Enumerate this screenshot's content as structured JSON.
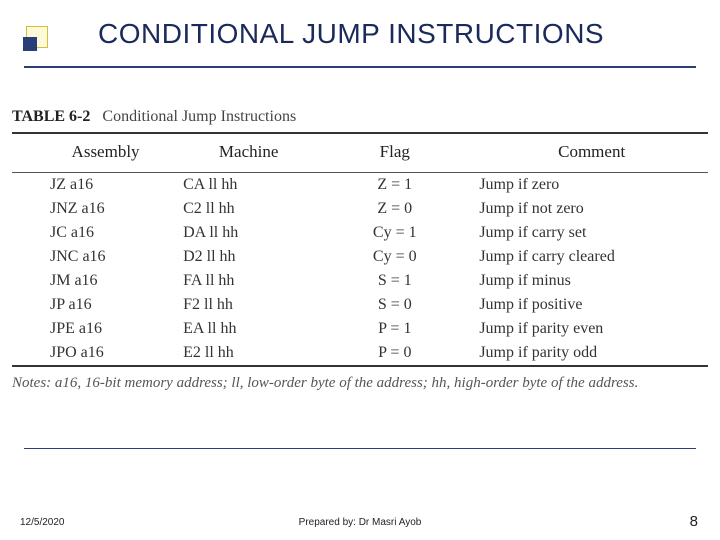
{
  "title": "CONDITIONAL JUMP INSTRUCTIONS",
  "table": {
    "caption_label": "TABLE 6-2",
    "caption_text": "Conditional Jump Instructions",
    "headers": [
      "Assembly",
      "Machine",
      "Flag",
      "Comment"
    ],
    "rows": [
      [
        "JZ a16",
        "CA ll hh",
        "Z = 1",
        "Jump if zero"
      ],
      [
        "JNZ a16",
        "C2 ll hh",
        "Z = 0",
        "Jump if not zero"
      ],
      [
        "JC a16",
        "DA ll hh",
        "Cy = 1",
        "Jump if carry set"
      ],
      [
        "JNC a16",
        "D2 ll hh",
        "Cy = 0",
        "Jump if carry cleared"
      ],
      [
        "JM a16",
        "FA ll hh",
        "S = 1",
        "Jump if minus"
      ],
      [
        "JP a16",
        "F2 ll hh",
        "S = 0",
        "Jump if positive"
      ],
      [
        "JPE a16",
        "EA ll hh",
        "P = 1",
        "Jump if parity even"
      ],
      [
        "JPO a16",
        "E2 ll hh",
        "P = 0",
        "Jump if parity odd"
      ]
    ],
    "notes_lead": "Notes:",
    "notes_text": " a16, 16-bit memory address; ll, low-order byte of the address; hh, high-order byte of the address."
  },
  "footer": {
    "date": "12/5/2020",
    "center": "Prepared by: Dr Masri Ayob",
    "page": "8"
  },
  "colors": {
    "title_color": "#1a2a5a",
    "accent": "#2a3f7a",
    "bullet_fill": "#fef9d8",
    "bullet_border": "#d4be3c"
  }
}
